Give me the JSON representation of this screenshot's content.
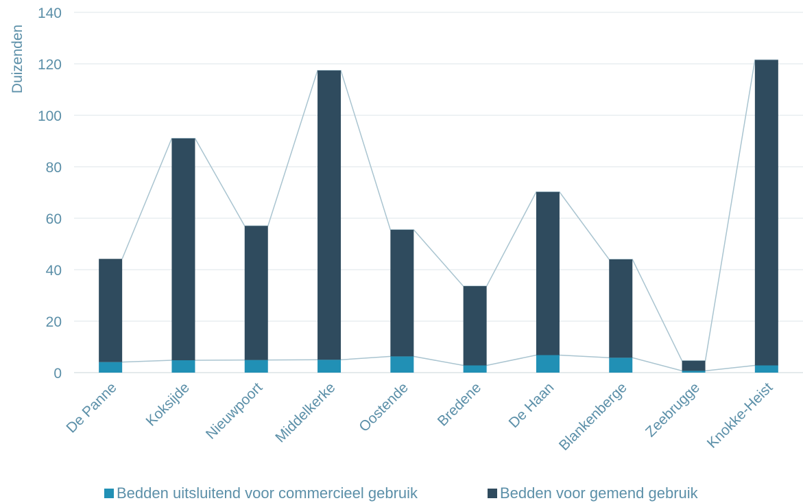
{
  "chart_data": {
    "type": "bar",
    "stacked": true,
    "categories": [
      "De Panne",
      "Koksijde",
      "Nieuwpoort",
      "Middelkerke",
      "Oostende",
      "Bredene",
      "De Haan",
      "Blankenberge",
      "Zeebrugge",
      "Knokke-Heist"
    ],
    "series": [
      {
        "name": "Bedden uitsluitend voor commercieel gebruik",
        "color": "#2190b5",
        "values": [
          4.1,
          4.8,
          4.9,
          5.0,
          6.3,
          2.8,
          6.8,
          5.8,
          0.7,
          2.8
        ]
      },
      {
        "name": "Bedden voor gemend gebruik",
        "color": "#2f4b5e",
        "values": [
          40.1,
          86.2,
          52.1,
          112.4,
          49.2,
          30.8,
          63.4,
          38.2,
          3.9,
          118.7
        ]
      }
    ],
    "ylabel": "Duizenden",
    "ylim": [
      0,
      140
    ],
    "yticks": [
      0,
      20,
      40,
      60,
      80,
      100,
      120,
      140
    ],
    "grid": true,
    "legend": "bottom",
    "connector_line_color": "#a9c4d0",
    "axis_text_color": "#5b8fa8"
  }
}
